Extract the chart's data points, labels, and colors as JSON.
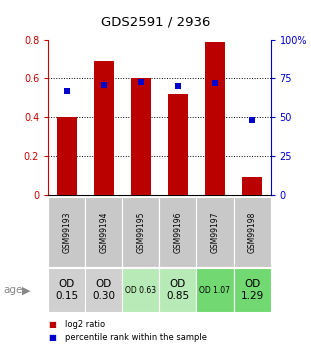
{
  "title": "GDS2591 / 2936",
  "samples": [
    "GSM99193",
    "GSM99194",
    "GSM99195",
    "GSM99196",
    "GSM99197",
    "GSM99198"
  ],
  "log2_ratios": [
    0.4,
    0.69,
    0.6,
    0.52,
    0.79,
    0.09
  ],
  "percentile_ranks": [
    67.0,
    71.0,
    73.0,
    70.0,
    72.0,
    48.0
  ],
  "od_labels": [
    "OD\n0.15",
    "OD\n0.30",
    "OD 0.63",
    "OD\n0.85",
    "OD 1.07",
    "OD\n1.29"
  ],
  "od_fontsize_large": [
    true,
    true,
    false,
    true,
    false,
    true
  ],
  "od_bg_colors": [
    "#d0d0d0",
    "#d0d0d0",
    "#b8eab8",
    "#b8eab8",
    "#72d872",
    "#72d872"
  ],
  "bar_color": "#bb0000",
  "dot_color": "#0000cc",
  "left_axis_color": "#cc0000",
  "right_axis_color": "#0000cc",
  "ylim_left": [
    0,
    0.8
  ],
  "ylim_right": [
    0,
    100
  ],
  "yticks_left": [
    0,
    0.2,
    0.4,
    0.6,
    0.8
  ],
  "yticks_right": [
    0,
    25,
    50,
    75,
    100
  ],
  "ytick_labels_left": [
    "0",
    "0.2",
    "0.4",
    "0.6",
    "0.8"
  ],
  "ytick_labels_right": [
    "0",
    "25",
    "50",
    "75",
    "100%"
  ],
  "background_color": "#ffffff",
  "sample_label_bg": "#c8c8c8",
  "age_label": "age",
  "legend_log2": "log2 ratio",
  "legend_pct": "percentile rank within the sample"
}
